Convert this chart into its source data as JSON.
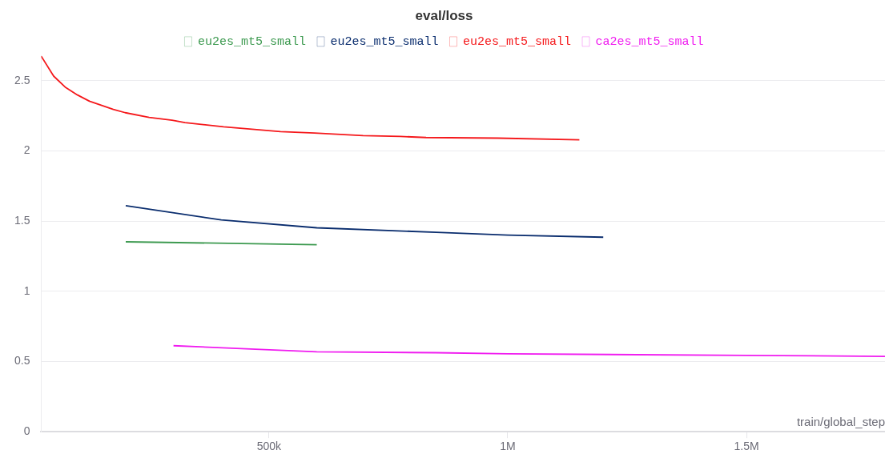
{
  "chart_data": {
    "type": "line",
    "title": "eval/loss",
    "xlabel": "train/global_step",
    "series": [
      {
        "name": "eu2es_mt5_small",
        "color": "#3d9a50",
        "x": [
          200000,
          600000
        ],
        "values": [
          1.353,
          1.333
        ]
      },
      {
        "name": "eu2es_mt5_small",
        "color": "#0a2d6e",
        "x": [
          200000,
          400000,
          600000,
          850000,
          1000000,
          1200000
        ],
        "values": [
          1.61,
          1.509,
          1.453,
          1.421,
          1.401,
          1.386
        ]
      },
      {
        "name": "eu2es_mt5_small",
        "color": "#f5191c",
        "x": [
          23000,
          49000,
          73000,
          99000,
          124000,
          174000,
          199000,
          249000,
          297000,
          324000,
          405000,
          524000,
          595000,
          697000,
          775000,
          829000,
          979000,
          1150000
        ],
        "values": [
          2.676,
          2.534,
          2.456,
          2.399,
          2.355,
          2.297,
          2.273,
          2.239,
          2.219,
          2.202,
          2.172,
          2.138,
          2.128,
          2.11,
          2.104,
          2.096,
          2.092,
          2.08
        ]
      },
      {
        "name": "ca2es_mt5_small",
        "color": "#f01cf0",
        "x": [
          300000,
          600000,
          850000,
          1000000,
          1500000,
          1790000
        ],
        "values": [
          0.613,
          0.569,
          0.563,
          0.555,
          0.544,
          0.537
        ]
      }
    ],
    "xlim": [
      23000,
      1790000
    ],
    "xticks": [
      {
        "value": 500000,
        "label": "500k"
      },
      {
        "value": 1000000,
        "label": "1M"
      },
      {
        "value": 1500000,
        "label": "1.5M"
      }
    ],
    "ylim": [
      0,
      2.68
    ],
    "yticks": [
      0,
      0.5,
      1,
      1.5,
      2,
      2.5
    ],
    "grid": "y",
    "legend": "top",
    "marker": "none",
    "line_style": "solid"
  }
}
